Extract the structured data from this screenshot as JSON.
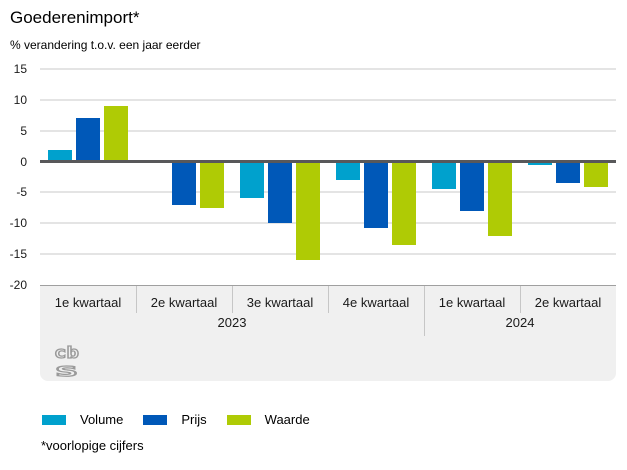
{
  "header": {
    "title": "Goederenimport*",
    "subtitle": "% verandering t.o.v. een jaar eerder"
  },
  "footnote": "*voorlopige cijfers",
  "logo": "cbs-logo",
  "colors": {
    "volume": "#00a1cd",
    "prijs": "#0058b8",
    "waarde": "#afcb05",
    "zero_line": "#58585a",
    "gridline": "#e4e4e4",
    "footer_bg": "#f0f0f0"
  },
  "chart_data": {
    "type": "bar",
    "title": "Goederenimport*",
    "subtitle": "% verandering t.o.v. een jaar eerder",
    "categories": [
      "1e kwartaal",
      "2e kwartaal",
      "3e kwartaal",
      "4e kwartaal",
      "1e kwartaal",
      "2e kwartaal"
    ],
    "year_groups": [
      {
        "label": "2023",
        "span": 4
      },
      {
        "label": "2024",
        "span": 2
      }
    ],
    "series": [
      {
        "name": "Volume",
        "color": "#00a1cd",
        "values": [
          1.9,
          0,
          -5.9,
          -3.0,
          -4.4,
          -0.6
        ]
      },
      {
        "name": "Prijs",
        "color": "#0058b8",
        "values": [
          7.0,
          -7.1,
          -10.0,
          -10.7,
          -8.0,
          -3.5
        ]
      },
      {
        "name": "Waarde",
        "color": "#afcb05",
        "values": [
          9.0,
          -7.5,
          -15.9,
          -13.5,
          -12.0,
          -4.1
        ]
      }
    ],
    "xlabel": "",
    "ylabel": "% verandering t.o.v. een jaar eerder",
    "ylim": [
      -20,
      15
    ],
    "y_ticks": [
      15,
      10,
      5,
      0,
      -5,
      -10,
      -15,
      -20
    ],
    "grid": true,
    "zero_line": true,
    "legend_position": "bottom"
  }
}
